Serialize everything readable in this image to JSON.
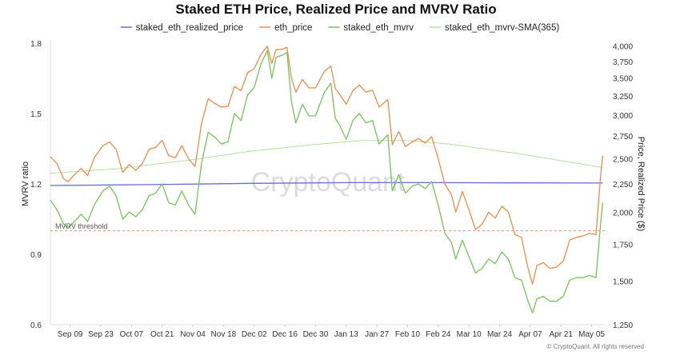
{
  "chart_data": {
    "type": "line",
    "title": "Staked ETH Price, Realized Price and MVRV Ratio",
    "y_left_label": "MVRV ratio",
    "y_right_label": "Price, Realized Price ($)",
    "y_left_ticks": [
      "0.6",
      "0.9",
      "1.2",
      "1.5",
      "1.8"
    ],
    "y_left_lim": [
      0.6,
      1.8
    ],
    "y_right_ticks": [
      "1,250",
      "1,500",
      "1,750",
      "2,000",
      "2,250",
      "2,500",
      "2,750",
      "3,000",
      "3,250",
      "3,500",
      "3,750",
      "4,000"
    ],
    "y_right_scale": "log",
    "y_right_lim": [
      1250,
      4050
    ],
    "x_ticks": [
      "Sep 09",
      "Sep 23",
      "Oct 07",
      "Oct 21",
      "Nov 04",
      "Nov 18",
      "Dec 02",
      "Dec 16",
      "Dec 30",
      "Jan 13",
      "Jan 27",
      "Feb 10",
      "Feb 24",
      "Mar 10",
      "Mar 24",
      "Apr 07",
      "Apr 21",
      "May 05"
    ],
    "grid": false,
    "legend": "top",
    "x_start": "2024-08-31",
    "x_end": "2025-05-11",
    "series": [
      {
        "name": "staked_eth_realized_price",
        "axis": "right",
        "color": "#6b6bd6",
        "points": [
          [
            "2024-08-31",
            2235
          ],
          [
            "2024-10-15",
            2243
          ],
          [
            "2024-12-01",
            2255
          ],
          [
            "2025-01-15",
            2262
          ],
          [
            "2025-02-20",
            2262
          ],
          [
            "2025-04-01",
            2260
          ],
          [
            "2025-05-10",
            2258
          ]
        ]
      },
      {
        "name": "eth_price",
        "axis": "right",
        "color": "#f08c4a",
        "points": [
          [
            "2024-08-31",
            2520
          ],
          [
            "2024-09-03",
            2450
          ],
          [
            "2024-09-06",
            2300
          ],
          [
            "2024-09-08",
            2270
          ],
          [
            "2024-09-11",
            2340
          ],
          [
            "2024-09-14",
            2400
          ],
          [
            "2024-09-17",
            2330
          ],
          [
            "2024-09-20",
            2510
          ],
          [
            "2024-09-24",
            2640
          ],
          [
            "2024-09-27",
            2680
          ],
          [
            "2024-09-30",
            2600
          ],
          [
            "2024-10-03",
            2360
          ],
          [
            "2024-10-06",
            2440
          ],
          [
            "2024-10-09",
            2380
          ],
          [
            "2024-10-12",
            2450
          ],
          [
            "2024-10-15",
            2600
          ],
          [
            "2024-10-18",
            2620
          ],
          [
            "2024-10-21",
            2700
          ],
          [
            "2024-10-24",
            2530
          ],
          [
            "2024-10-27",
            2510
          ],
          [
            "2024-10-30",
            2640
          ],
          [
            "2024-11-02",
            2500
          ],
          [
            "2024-11-05",
            2420
          ],
          [
            "2024-11-08",
            2900
          ],
          [
            "2024-11-11",
            3210
          ],
          [
            "2024-11-14",
            3150
          ],
          [
            "2024-11-17",
            3100
          ],
          [
            "2024-11-20",
            3110
          ],
          [
            "2024-11-23",
            3380
          ],
          [
            "2024-11-26",
            3320
          ],
          [
            "2024-11-29",
            3580
          ],
          [
            "2024-12-02",
            3640
          ],
          [
            "2024-12-05",
            3860
          ],
          [
            "2024-12-08",
            4000
          ],
          [
            "2024-12-10",
            3720
          ],
          [
            "2024-12-12",
            3940
          ],
          [
            "2024-12-15",
            3950
          ],
          [
            "2024-12-17",
            3980
          ],
          [
            "2024-12-19",
            3500
          ],
          [
            "2024-12-21",
            3300
          ],
          [
            "2024-12-24",
            3480
          ],
          [
            "2024-12-27",
            3360
          ],
          [
            "2024-12-30",
            3360
          ],
          [
            "2025-01-03",
            3600
          ],
          [
            "2025-01-06",
            3680
          ],
          [
            "2025-01-08",
            3350
          ],
          [
            "2025-01-10",
            3270
          ],
          [
            "2025-01-13",
            3140
          ],
          [
            "2025-01-16",
            3320
          ],
          [
            "2025-01-19",
            3400
          ],
          [
            "2025-01-22",
            3300
          ],
          [
            "2025-01-25",
            3330
          ],
          [
            "2025-01-28",
            3100
          ],
          [
            "2025-02-01",
            3200
          ],
          [
            "2025-02-03",
            2650
          ],
          [
            "2025-02-06",
            2800
          ],
          [
            "2025-02-09",
            2630
          ],
          [
            "2025-02-12",
            2680
          ],
          [
            "2025-02-15",
            2720
          ],
          [
            "2025-02-18",
            2670
          ],
          [
            "2025-02-21",
            2740
          ],
          [
            "2025-02-24",
            2500
          ],
          [
            "2025-02-27",
            2250
          ],
          [
            "2025-03-02",
            2150
          ],
          [
            "2025-03-04",
            2000
          ],
          [
            "2025-03-07",
            2180
          ],
          [
            "2025-03-10",
            2020
          ],
          [
            "2025-03-13",
            1860
          ],
          [
            "2025-03-16",
            1900
          ],
          [
            "2025-03-19",
            2000
          ],
          [
            "2025-03-22",
            1950
          ],
          [
            "2025-03-25",
            2050
          ],
          [
            "2025-03-28",
            2000
          ],
          [
            "2025-03-31",
            1820
          ],
          [
            "2025-04-03",
            1800
          ],
          [
            "2025-04-06",
            1580
          ],
          [
            "2025-04-08",
            1480
          ],
          [
            "2025-04-10",
            1600
          ],
          [
            "2025-04-13",
            1620
          ],
          [
            "2025-04-16",
            1580
          ],
          [
            "2025-04-19",
            1590
          ],
          [
            "2025-04-22",
            1630
          ],
          [
            "2025-04-25",
            1780
          ],
          [
            "2025-04-28",
            1800
          ],
          [
            "2025-05-01",
            1810
          ],
          [
            "2025-05-04",
            1830
          ],
          [
            "2025-05-07",
            1820
          ],
          [
            "2025-05-09",
            2300
          ],
          [
            "2025-05-10",
            2530
          ]
        ]
      },
      {
        "name": "staked_eth_mvrv",
        "axis": "left",
        "color": "#78c35a",
        "points": [
          [
            "2024-08-31",
            1.13
          ],
          [
            "2024-09-03",
            1.09
          ],
          [
            "2024-09-06",
            1.03
          ],
          [
            "2024-09-08",
            1.01
          ],
          [
            "2024-09-11",
            1.04
          ],
          [
            "2024-09-14",
            1.07
          ],
          [
            "2024-09-17",
            1.04
          ],
          [
            "2024-09-20",
            1.11
          ],
          [
            "2024-09-24",
            1.17
          ],
          [
            "2024-09-27",
            1.19
          ],
          [
            "2024-09-30",
            1.15
          ],
          [
            "2024-10-03",
            1.05
          ],
          [
            "2024-10-06",
            1.08
          ],
          [
            "2024-10-09",
            1.06
          ],
          [
            "2024-10-12",
            1.09
          ],
          [
            "2024-10-15",
            1.15
          ],
          [
            "2024-10-18",
            1.16
          ],
          [
            "2024-10-21",
            1.2
          ],
          [
            "2024-10-24",
            1.12
          ],
          [
            "2024-10-27",
            1.11
          ],
          [
            "2024-10-30",
            1.17
          ],
          [
            "2024-11-02",
            1.11
          ],
          [
            "2024-11-05",
            1.07
          ],
          [
            "2024-11-08",
            1.29
          ],
          [
            "2024-11-11",
            1.42
          ],
          [
            "2024-11-14",
            1.4
          ],
          [
            "2024-11-17",
            1.37
          ],
          [
            "2024-11-20",
            1.38
          ],
          [
            "2024-11-23",
            1.5
          ],
          [
            "2024-11-26",
            1.47
          ],
          [
            "2024-11-29",
            1.58
          ],
          [
            "2024-12-02",
            1.61
          ],
          [
            "2024-12-05",
            1.71
          ],
          [
            "2024-12-08",
            1.77
          ],
          [
            "2024-12-10",
            1.65
          ],
          [
            "2024-12-12",
            1.74
          ],
          [
            "2024-12-15",
            1.75
          ],
          [
            "2024-12-17",
            1.76
          ],
          [
            "2024-12-19",
            1.55
          ],
          [
            "2024-12-21",
            1.46
          ],
          [
            "2024-12-24",
            1.54
          ],
          [
            "2024-12-27",
            1.49
          ],
          [
            "2024-12-30",
            1.49
          ],
          [
            "2025-01-03",
            1.59
          ],
          [
            "2025-01-06",
            1.63
          ],
          [
            "2025-01-08",
            1.48
          ],
          [
            "2025-01-10",
            1.45
          ],
          [
            "2025-01-13",
            1.39
          ],
          [
            "2025-01-16",
            1.47
          ],
          [
            "2025-01-19",
            1.5
          ],
          [
            "2025-01-22",
            1.46
          ],
          [
            "2025-01-25",
            1.47
          ],
          [
            "2025-01-28",
            1.37
          ],
          [
            "2025-02-01",
            1.41
          ],
          [
            "2025-02-03",
            1.17
          ],
          [
            "2025-02-06",
            1.24
          ],
          [
            "2025-02-09",
            1.16
          ],
          [
            "2025-02-12",
            1.19
          ],
          [
            "2025-02-15",
            1.2
          ],
          [
            "2025-02-18",
            1.18
          ],
          [
            "2025-02-21",
            1.21
          ],
          [
            "2025-02-24",
            1.11
          ],
          [
            "2025-02-27",
            0.99
          ],
          [
            "2025-03-02",
            0.95
          ],
          [
            "2025-03-04",
            0.88
          ],
          [
            "2025-03-07",
            0.96
          ],
          [
            "2025-03-10",
            0.89
          ],
          [
            "2025-03-13",
            0.82
          ],
          [
            "2025-03-16",
            0.84
          ],
          [
            "2025-03-19",
            0.88
          ],
          [
            "2025-03-22",
            0.86
          ],
          [
            "2025-03-25",
            0.91
          ],
          [
            "2025-03-28",
            0.88
          ],
          [
            "2025-03-31",
            0.8
          ],
          [
            "2025-04-03",
            0.79
          ],
          [
            "2025-04-06",
            0.7
          ],
          [
            "2025-04-08",
            0.65
          ],
          [
            "2025-04-10",
            0.71
          ],
          [
            "2025-04-13",
            0.72
          ],
          [
            "2025-04-16",
            0.7
          ],
          [
            "2025-04-19",
            0.7
          ],
          [
            "2025-04-22",
            0.72
          ],
          [
            "2025-04-25",
            0.79
          ],
          [
            "2025-04-28",
            0.8
          ],
          [
            "2025-05-01",
            0.8
          ],
          [
            "2025-05-04",
            0.81
          ],
          [
            "2025-05-07",
            0.8
          ],
          [
            "2025-05-09",
            1.02
          ],
          [
            "2025-05-10",
            1.12
          ]
        ]
      },
      {
        "name": "staked_eth_mvrv-SMA(365)",
        "axis": "left",
        "color": "#b8dfa2",
        "points": [
          [
            "2024-08-31",
            1.245
          ],
          [
            "2024-10-01",
            1.265
          ],
          [
            "2024-11-01",
            1.3
          ],
          [
            "2024-12-01",
            1.34
          ],
          [
            "2025-01-01",
            1.37
          ],
          [
            "2025-01-20",
            1.385
          ],
          [
            "2025-02-10",
            1.385
          ],
          [
            "2025-03-01",
            1.37
          ],
          [
            "2025-04-01",
            1.33
          ],
          [
            "2025-05-10",
            1.27
          ]
        ]
      }
    ],
    "threshold": {
      "label": "MVRV threshold",
      "value": 1.0,
      "color": "#f08c7a"
    },
    "watermark": "CryptoQuant",
    "credit": "© CryptoQuant. All rights reserved"
  }
}
